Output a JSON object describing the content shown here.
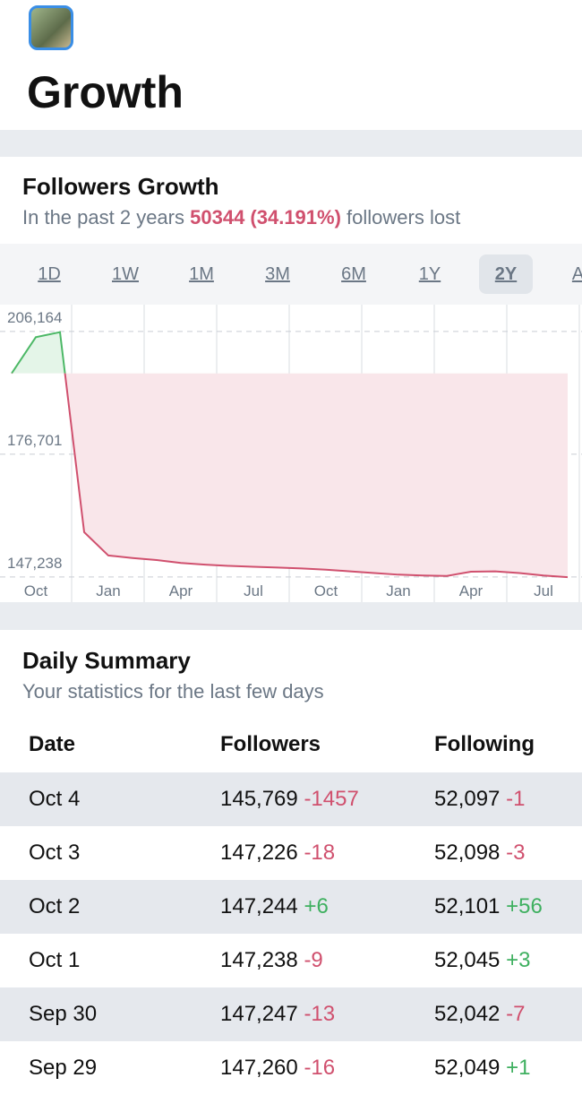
{
  "header": {
    "title": "Growth"
  },
  "growth": {
    "title": "Followers Growth",
    "subtitle_start": "In the past 2 years",
    "subtitle_highlight": "50344 (34.191%)",
    "subtitle_end": "followers lost",
    "ranges": [
      "1D",
      "1W",
      "1M",
      "3M",
      "6M",
      "1Y",
      "2Y",
      "All"
    ],
    "selected_range": "2Y"
  },
  "chart_data": {
    "type": "line",
    "categories": [
      null,
      "Oct",
      null,
      null,
      "Jan",
      null,
      null,
      "Apr",
      null,
      null,
      "Jul",
      null,
      null,
      "Oct",
      null,
      null,
      "Jan",
      null,
      null,
      "Apr",
      null,
      null,
      "Jul",
      null
    ],
    "series": [
      {
        "name": "Followers",
        "color": "#d0506e",
        "values": [
          196113,
          204800,
          206000,
          158000,
          152400,
          151800,
          151300,
          150600,
          150200,
          149900,
          149700,
          149500,
          149300,
          149000,
          148600,
          148200,
          147800,
          147600,
          147500,
          148500,
          148600,
          148200,
          147600,
          147200
        ]
      }
    ],
    "ylim": [
      141200,
      212600
    ],
    "yticks": [
      {
        "value": 147238,
        "label": "147,238"
      },
      {
        "value": 176701,
        "label": "176,701"
      },
      {
        "value": 206164,
        "label": "206,164"
      }
    ],
    "grid": true
  },
  "summary": {
    "title": "Daily Summary",
    "subtitle": "Your statistics for the last few days",
    "columns": [
      "Date",
      "Followers",
      "Following"
    ],
    "rows": [
      {
        "date": "Oct 4",
        "followers": "145,769",
        "followers_change": "-1457",
        "following": "52,097",
        "following_change": "-1"
      },
      {
        "date": "Oct 3",
        "followers": "147,226",
        "followers_change": "-18",
        "following": "52,098",
        "following_change": "-3"
      },
      {
        "date": "Oct 2",
        "followers": "147,244",
        "followers_change": "+6",
        "following": "52,101",
        "following_change": "+56"
      },
      {
        "date": "Oct 1",
        "followers": "147,238",
        "followers_change": "-9",
        "following": "52,045",
        "following_change": "+3"
      },
      {
        "date": "Sep 30",
        "followers": "147,247",
        "followers_change": "-13",
        "following": "52,042",
        "following_change": "-7"
      },
      {
        "date": "Sep 29",
        "followers": "147,260",
        "followers_change": "-16",
        "following": "52,049",
        "following_change": "+1"
      }
    ]
  }
}
